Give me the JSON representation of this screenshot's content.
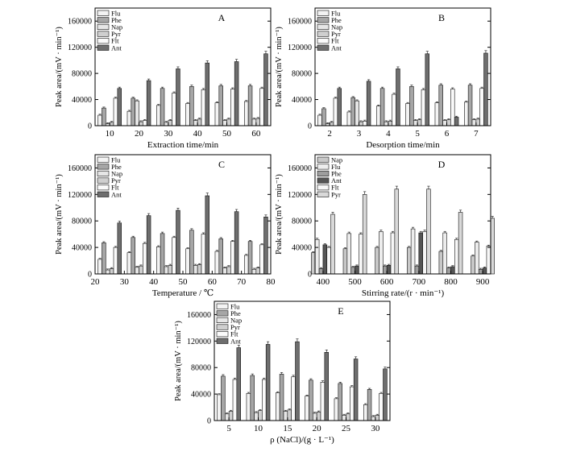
{
  "colors": {
    "Flu": "#f3f3f3",
    "Phe": "#a6a6a6",
    "Nap": "#e6e6e6",
    "Pyr": "#cfcfcf",
    "Flt": "#fafafa",
    "Ant": "#6e6e6e",
    "Nap_D": "#c8c8c8",
    "Flu_D": "#ededed",
    "Phe_D": "#9e9e9e",
    "Ant_D": "#555555",
    "Flt_D": "#f7f7f7",
    "Pyr_D": "#d9d9d9"
  },
  "chart_data": [
    {
      "type": "bar",
      "panel_label": "A",
      "xlabel": "Extraction time/min",
      "ylabel": "Peak area/(mV · min⁻¹)",
      "categories": [
        "10",
        "20",
        "30",
        "40",
        "50",
        "60"
      ],
      "ylim": [
        0,
        180000
      ],
      "yticks": [
        "0",
        "40000",
        "80000",
        "120000",
        "160000"
      ],
      "series": [
        {
          "name": "Flu",
          "values": [
            16000,
            22000,
            31000,
            34000,
            35000,
            37000
          ]
        },
        {
          "name": "Phe",
          "values": [
            27000,
            42000,
            57000,
            60000,
            61000,
            61000
          ]
        },
        {
          "name": "Nap",
          "values": [
            3000,
            38000,
            5000,
            8000,
            8000,
            10000
          ]
        },
        {
          "name": "Pyr",
          "values": [
            5000,
            6000,
            8000,
            10000,
            10000,
            11000
          ]
        },
        {
          "name": "Flt",
          "values": [
            42000,
            8000,
            50000,
            55000,
            56000,
            57000
          ]
        },
        {
          "name": "Ant",
          "values": [
            57000,
            69000,
            87000,
            96000,
            98000,
            110000
          ]
        }
      ]
    },
    {
      "type": "bar",
      "panel_label": "B",
      "xlabel": "Desorption time/min",
      "ylabel": "Peak area/(mV · min⁻¹)",
      "categories": [
        "2",
        "3",
        "4",
        "5",
        "6",
        "7"
      ],
      "ylim": [
        0,
        180000
      ],
      "yticks": [
        "0",
        "40000",
        "80000",
        "120000",
        "160000"
      ],
      "series": [
        {
          "name": "Flu",
          "values": [
            16000,
            21000,
            30000,
            34000,
            35000,
            36000
          ]
        },
        {
          "name": "Phe",
          "values": [
            26000,
            43000,
            57000,
            60000,
            62000,
            62000
          ]
        },
        {
          "name": "Nap",
          "values": [
            3000,
            38000,
            6000,
            8000,
            8000,
            9000
          ]
        },
        {
          "name": "Pyr",
          "values": [
            5000,
            6000,
            7000,
            9000,
            9000,
            10000
          ]
        },
        {
          "name": "Flt",
          "values": [
            42000,
            7000,
            48000,
            55000,
            56000,
            57000
          ]
        },
        {
          "name": "Ant",
          "values": [
            57000,
            68000,
            87000,
            110000,
            13000,
            111000
          ]
        }
      ]
    },
    {
      "type": "bar",
      "panel_label": "C",
      "xlabel": "Temperature / ℃",
      "ylabel": "Peak area/(mV · min⁻¹)",
      "categories": [
        "25",
        "35",
        "45",
        "55",
        "65",
        "75"
      ],
      "xticks": [
        "20",
        "30",
        "40",
        "50",
        "60",
        "70",
        "80"
      ],
      "ylim": [
        0,
        180000
      ],
      "yticks": [
        "0",
        "40000",
        "80000",
        "120000",
        "160000"
      ],
      "series": [
        {
          "name": "Flu",
          "values": [
            22000,
            32000,
            41000,
            38000,
            34000,
            28000
          ]
        },
        {
          "name": "Phe",
          "values": [
            47000,
            55000,
            61000,
            66000,
            53000,
            49000
          ]
        },
        {
          "name": "Nap",
          "values": [
            6000,
            10000,
            11000,
            13000,
            9000,
            7000
          ]
        },
        {
          "name": "Pyr",
          "values": [
            8000,
            12000,
            13000,
            14000,
            11000,
            9000
          ]
        },
        {
          "name": "Flt",
          "values": [
            40000,
            46000,
            55000,
            60000,
            49000,
            44000
          ]
        },
        {
          "name": "Ant",
          "values": [
            77000,
            88000,
            96000,
            118000,
            94000,
            86000
          ]
        }
      ]
    },
    {
      "type": "bar",
      "panel_label": "D",
      "xlabel": "Stirring rate/(r · min⁻¹)",
      "ylabel": "Peak area/(mV · min⁻¹)",
      "categories": [
        "400",
        "500",
        "600",
        "700",
        "800",
        "900"
      ],
      "xticks": [
        "400",
        "500",
        "600",
        "700",
        "800",
        "900"
      ],
      "ylim": [
        0,
        180000
      ],
      "yticks": [
        "0",
        "40000",
        "80000",
        "120000",
        "160000"
      ],
      "series": [
        {
          "name": "Nap",
          "values": [
            32000,
            38000,
            40000,
            40000,
            34000,
            27000
          ]
        },
        {
          "name": "Flu",
          "values": [
            52000,
            61000,
            64000,
            68000,
            62000,
            48000
          ]
        },
        {
          "name": "Phe",
          "values": [
            8000,
            10000,
            12000,
            12000,
            9000,
            7000
          ]
        },
        {
          "name": "Ant",
          "values": [
            44000,
            12000,
            13000,
            62000,
            11000,
            9000
          ]
        },
        {
          "name": "Flt",
          "values": [
            40000,
            60000,
            62000,
            64000,
            52000,
            42000
          ]
        },
        {
          "name": "Pyr",
          "values": [
            90000,
            120000,
            128000,
            128000,
            93000,
            84000
          ]
        }
      ]
    },
    {
      "type": "bar",
      "panel_label": "E",
      "xlabel": "ρ (NaCl)/(g · L⁻¹)",
      "ylabel": "Peak area/(mV · min⁻¹)",
      "categories": [
        "5",
        "10",
        "15",
        "20",
        "25",
        "30"
      ],
      "ylim": [
        0,
        180000
      ],
      "yticks": [
        "0",
        "40000",
        "80000",
        "120000",
        "160000"
      ],
      "series": [
        {
          "name": "Flu",
          "values": [
            39000,
            41000,
            42000,
            37000,
            33000,
            24000
          ]
        },
        {
          "name": "Phe",
          "values": [
            67000,
            68000,
            70000,
            61000,
            56000,
            47000
          ]
        },
        {
          "name": "Nap",
          "values": [
            10000,
            12000,
            14000,
            11000,
            8000,
            6000
          ]
        },
        {
          "name": "Pyr",
          "values": [
            14000,
            15000,
            16000,
            13000,
            10000,
            8000
          ]
        },
        {
          "name": "Flt",
          "values": [
            62000,
            62000,
            66000,
            58000,
            51000,
            41000
          ]
        },
        {
          "name": "Ant",
          "values": [
            110000,
            115000,
            119000,
            103000,
            93000,
            78000
          ]
        }
      ]
    }
  ]
}
